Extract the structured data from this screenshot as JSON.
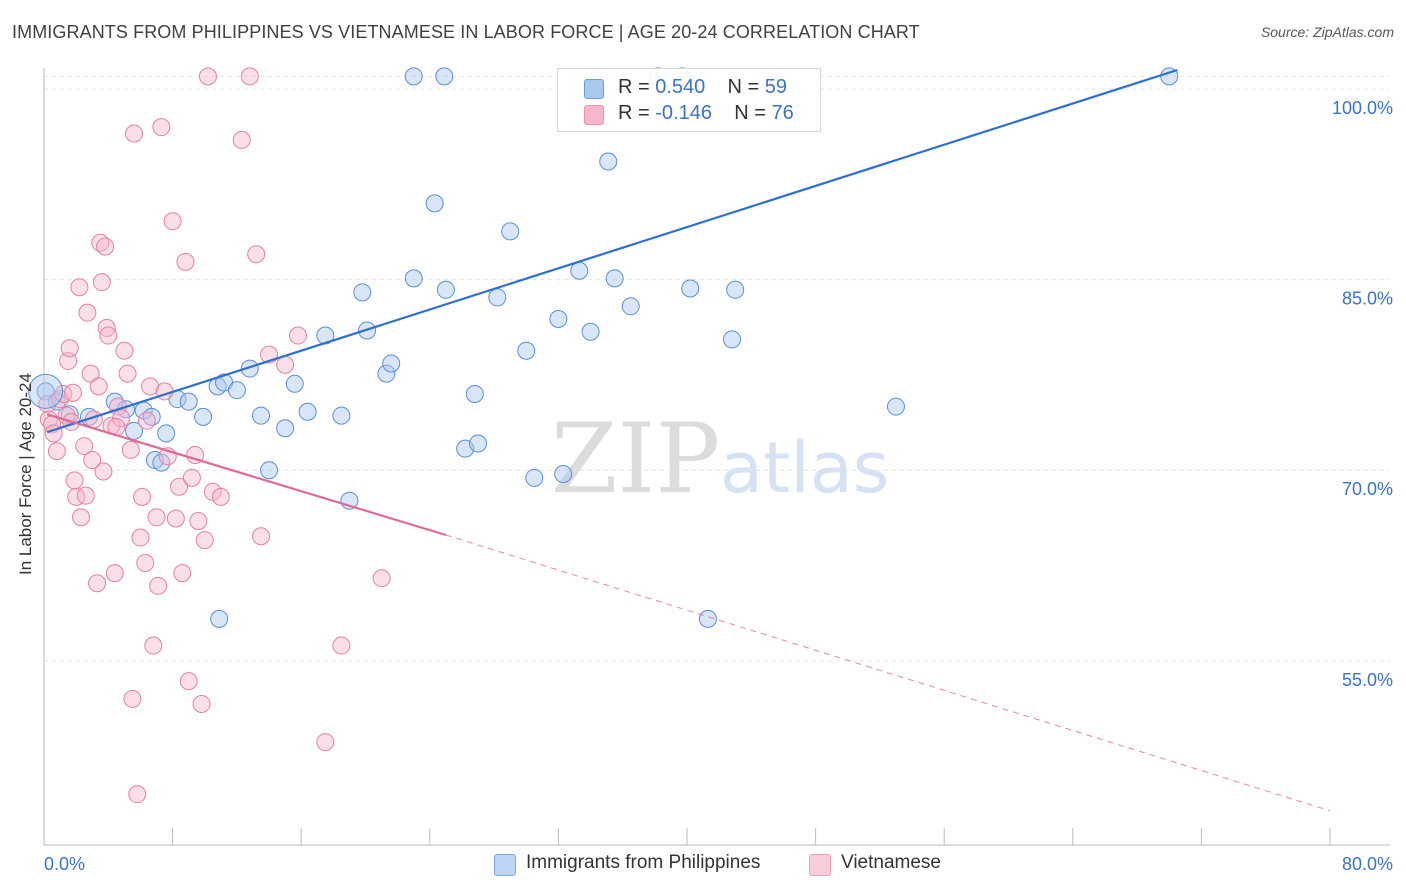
{
  "title": "IMMIGRANTS FROM PHILIPPINES VS VIETNAMESE IN LABOR FORCE | AGE 20-24 CORRELATION CHART",
  "source": "Source: ZipAtlas.com",
  "watermark": "ZIPatlas",
  "legend": {
    "r_label": "R =",
    "n_label": "N =",
    "rows": [
      {
        "r": "0.540",
        "n": "59",
        "color": "#a9c8f0"
      },
      {
        "r": "-0.146",
        "n": "76",
        "color": "#f5b6cb"
      }
    ]
  },
  "chart_data": {
    "type": "scatter",
    "title": "IMMIGRANTS FROM PHILIPPINES VS VIETNAMESE IN LABOR FORCE | AGE 20-24 CORRELATION CHART",
    "xlabel": "",
    "ylabel": "In Labor Force | Age 20-24",
    "xlim": [
      0,
      80
    ],
    "ylim": [
      40.5,
      101.5
    ],
    "x_tick_labels": [
      "0.0%",
      "80.0%"
    ],
    "y_tick_values": [
      55,
      70,
      85,
      100
    ],
    "y_tick_labels": [
      "55.0%",
      "70.0%",
      "85.0%",
      "100.0%"
    ],
    "grid": true,
    "legend_position": "top-center",
    "series": [
      {
        "name": "Immigrants from Philippines",
        "color": "#a9c8f0",
        "stroke": "#5a8fd8",
        "trend": {
          "x0": 0.2,
          "y0": 73.0,
          "x1": 70.5,
          "y1": 101.5,
          "dashed_to": null,
          "color": "#2f6fd0"
        },
        "points": [
          [
            0.1,
            76.2
          ],
          [
            0.8,
            75.4
          ],
          [
            1.6,
            74.4
          ],
          [
            2.8,
            74.2
          ],
          [
            4.4,
            75.4
          ],
          [
            5.1,
            74.8
          ],
          [
            5.6,
            73.1
          ],
          [
            6.2,
            74.7
          ],
          [
            6.9,
            70.8
          ],
          [
            7.6,
            72.9
          ],
          [
            8.3,
            75.6
          ],
          [
            9.0,
            75.4
          ],
          [
            7.3,
            70.6
          ],
          [
            9.9,
            74.2
          ],
          [
            10.8,
            76.6
          ],
          [
            11.2,
            76.9
          ],
          [
            12.0,
            76.3
          ],
          [
            12.8,
            78.0
          ],
          [
            13.5,
            74.3
          ],
          [
            14.0,
            70.0
          ],
          [
            15.0,
            73.3
          ],
          [
            15.6,
            76.8
          ],
          [
            16.4,
            74.6
          ],
          [
            17.5,
            80.6
          ],
          [
            18.5,
            74.3
          ],
          [
            19.0,
            67.6
          ],
          [
            19.8,
            84.0
          ],
          [
            20.1,
            81.0
          ],
          [
            21.3,
            77.6
          ],
          [
            21.6,
            78.4
          ],
          [
            23.0,
            85.1
          ],
          [
            23.0,
            101.0
          ],
          [
            24.3,
            91.0
          ],
          [
            25.0,
            84.2
          ],
          [
            24.9,
            101.0
          ],
          [
            26.2,
            71.7
          ],
          [
            26.8,
            76.0
          ],
          [
            27.0,
            72.1
          ],
          [
            28.2,
            83.6
          ],
          [
            29.0,
            88.8
          ],
          [
            30.0,
            79.4
          ],
          [
            30.5,
            69.4
          ],
          [
            32.0,
            81.9
          ],
          [
            32.3,
            69.7
          ],
          [
            33.3,
            85.7
          ],
          [
            34.0,
            80.9
          ],
          [
            35.1,
            94.3
          ],
          [
            35.5,
            85.1
          ],
          [
            36.5,
            82.9
          ],
          [
            38.2,
            101.0
          ],
          [
            39.7,
            101.0
          ],
          [
            40.2,
            84.3
          ],
          [
            41.3,
            58.3
          ],
          [
            42.8,
            80.3
          ],
          [
            43.0,
            84.2
          ],
          [
            53.0,
            75.0
          ],
          [
            70.0,
            101.0
          ],
          [
            10.9,
            58.3
          ],
          [
            6.7,
            74.2
          ]
        ]
      },
      {
        "name": "Vietnamese",
        "color": "#f5b6cb",
        "stroke": "#e6839f",
        "trend": {
          "x0": 0.2,
          "y0": 74.4,
          "x1": 25.0,
          "y1": 64.9,
          "dashed_to": [
            80.0,
            43.2
          ],
          "color": "#e0699a"
        },
        "points": [
          [
            0.2,
            75.2
          ],
          [
            0.3,
            74.0
          ],
          [
            0.5,
            73.6
          ],
          [
            0.6,
            72.9
          ],
          [
            0.8,
            71.5
          ],
          [
            1.0,
            75.6
          ],
          [
            1.2,
            76.0
          ],
          [
            1.4,
            74.3
          ],
          [
            1.5,
            78.6
          ],
          [
            1.6,
            79.6
          ],
          [
            1.7,
            73.8
          ],
          [
            1.8,
            76.1
          ],
          [
            1.9,
            69.2
          ],
          [
            2.0,
            67.9
          ],
          [
            2.2,
            84.4
          ],
          [
            2.3,
            66.3
          ],
          [
            2.5,
            71.9
          ],
          [
            2.6,
            68.0
          ],
          [
            2.7,
            82.4
          ],
          [
            2.9,
            77.6
          ],
          [
            3.0,
            70.8
          ],
          [
            3.1,
            74.0
          ],
          [
            3.3,
            61.1
          ],
          [
            3.4,
            76.6
          ],
          [
            3.5,
            87.9
          ],
          [
            3.6,
            84.8
          ],
          [
            3.7,
            69.9
          ],
          [
            3.8,
            87.6
          ],
          [
            3.9,
            81.2
          ],
          [
            4.0,
            80.6
          ],
          [
            4.2,
            73.5
          ],
          [
            4.4,
            61.9
          ],
          [
            4.6,
            75.0
          ],
          [
            4.8,
            74.1
          ],
          [
            5.0,
            79.4
          ],
          [
            5.2,
            77.6
          ],
          [
            5.4,
            71.6
          ],
          [
            5.5,
            52.0
          ],
          [
            5.6,
            96.5
          ],
          [
            5.8,
            44.5
          ],
          [
            6.0,
            64.7
          ],
          [
            6.1,
            67.9
          ],
          [
            6.3,
            62.7
          ],
          [
            6.4,
            73.9
          ],
          [
            6.6,
            76.6
          ],
          [
            6.8,
            56.2
          ],
          [
            7.0,
            66.3
          ],
          [
            7.1,
            60.9
          ],
          [
            7.3,
            97.0
          ],
          [
            7.5,
            76.2
          ],
          [
            7.7,
            71.1
          ],
          [
            8.0,
            89.6
          ],
          [
            8.2,
            66.2
          ],
          [
            8.4,
            68.7
          ],
          [
            8.6,
            61.9
          ],
          [
            8.8,
            86.4
          ],
          [
            9.0,
            53.4
          ],
          [
            9.2,
            69.4
          ],
          [
            9.4,
            71.2
          ],
          [
            9.6,
            66.0
          ],
          [
            9.8,
            51.6
          ],
          [
            10.0,
            64.5
          ],
          [
            10.2,
            101.0
          ],
          [
            10.5,
            68.3
          ],
          [
            11.0,
            67.9
          ],
          [
            12.3,
            96.0
          ],
          [
            12.8,
            101.0
          ],
          [
            13.2,
            87.0
          ],
          [
            13.5,
            64.8
          ],
          [
            14.0,
            79.1
          ],
          [
            15.0,
            78.3
          ],
          [
            15.8,
            80.6
          ],
          [
            17.5,
            48.6
          ],
          [
            18.5,
            56.2
          ],
          [
            21.0,
            61.5
          ],
          [
            4.5,
            73.4
          ]
        ]
      }
    ]
  },
  "bottom_legend": [
    {
      "label": "Immigrants from Philippines",
      "color": "#a9c8f0"
    },
    {
      "label": "Vietnamese",
      "color": "#f5b6cb"
    }
  ]
}
